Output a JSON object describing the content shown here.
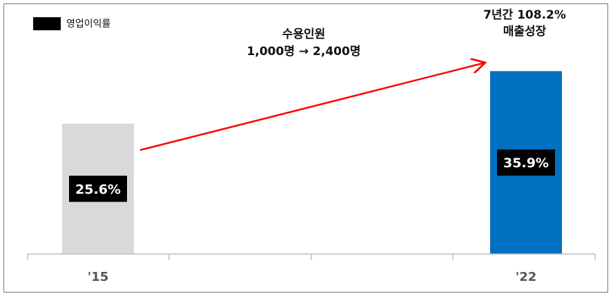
{
  "chart_data": {
    "type": "bar",
    "categories": [
      "'15",
      "'22"
    ],
    "series": [
      {
        "name": "영업이익률",
        "values": [
          25.6,
          35.9
        ]
      }
    ],
    "value_labels": [
      "25.6%",
      "35.9%"
    ],
    "bar_colors": [
      "#d9d9d9",
      "#0070c0"
    ],
    "legend": {
      "label": "영업이익률",
      "color": "#000000",
      "position": "top-left"
    },
    "annotations": {
      "people_line1": "수용인원",
      "people_line2": "1,000명 → 2,400명",
      "growth_line1": "7년간 108.2%",
      "growth_line2": "매출성장"
    },
    "arrow_color": "#ff0000",
    "ylim": [
      0,
      40
    ],
    "grid": false
  }
}
